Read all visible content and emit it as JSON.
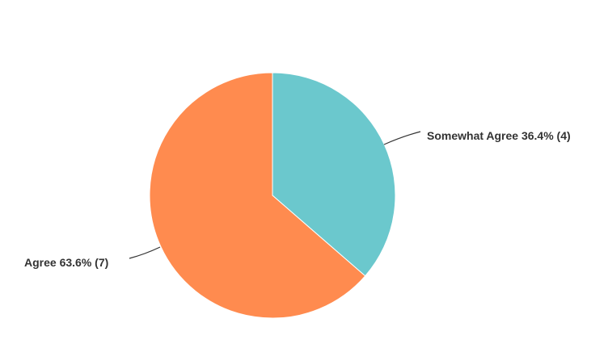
{
  "chart_data": {
    "type": "pie",
    "title": "",
    "slices": [
      {
        "label": "Somewhat Agree",
        "percent": 36.4,
        "count": 4,
        "color": "#6BC8CD",
        "text": "Somewhat Agree 36.4% (4)"
      },
      {
        "label": "Agree",
        "percent": 63.6,
        "count": 7,
        "color": "#FF8B4F",
        "text": "Agree 63.6% (7)"
      }
    ],
    "start_angle": "12 o'clock",
    "direction": "clockwise",
    "legend": "none"
  }
}
